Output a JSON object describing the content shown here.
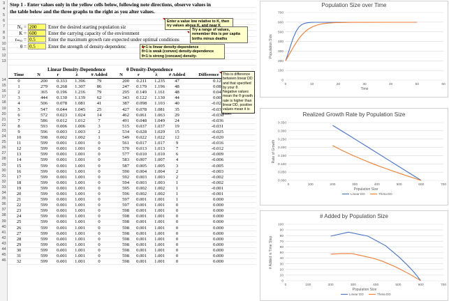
{
  "instructions": [
    "Step 1 - Enter values only in the yellow cells below, following note directions, observe values in",
    "the table below and the three graphs to the right as you alter values."
  ],
  "params": [
    {
      "label": "N₀ =",
      "value": "200",
      "desc": "Enter the desired starting population siz"
    },
    {
      "label": "K =",
      "value": "600",
      "desc": "Enter the carrying capacity of the environment"
    },
    {
      "label": "rₘₐₓ =",
      "value": "0.5",
      "desc": "Enter the maximum growth rate expected under optimal conditions"
    },
    {
      "label": "θ = ",
      "value": "0.5",
      "desc": "Enter the strength of density-dependenc"
    }
  ],
  "notes": {
    "k_note": "Enter a value low relative to K, then try values above K, and near K",
    "r_note": "Try a range of values, remember this is per capita births minus deaths",
    "theta_note": [
      "θ=1 is linear density-dependence",
      "θ>1 is weak (convex) density-dependence",
      "θ<1 is strong (concave) density-"
    ],
    "diff_note": "This is difference between linear DD and that specified by your θ. Negative values mean the θ growth rate is higher than linear DD, positive values mean it is lower."
  },
  "table": {
    "group_linear": "Linear Density-Dependence",
    "group_theta": "θ Density-Dependence",
    "headers": [
      "Time",
      "N",
      "r",
      "λ",
      "# Added",
      "N",
      "r",
      "λ",
      "# Added",
      "Difference"
    ],
    "rows": [
      [
        "0",
        "200",
        "0.333",
        "1.396",
        "79",
        "200",
        "0.211",
        "1.235",
        "47",
        "0.122"
      ],
      [
        "1",
        "279",
        "0.268",
        "1.307",
        "86",
        "247",
        "0.179",
        "1.196",
        "48",
        "0.088"
      ],
      [
        "2",
        "365",
        "0.196",
        "1.216",
        "79",
        "295",
        "0.149",
        "1.161",
        "48",
        "0.046"
      ],
      [
        "3",
        "444",
        "0.130",
        "1.139",
        "62",
        "343",
        "0.122",
        "1.130",
        "44",
        "0.008"
      ],
      [
        "4",
        "506",
        "0.078",
        "1.081",
        "41",
        "387",
        "0.098",
        "1.103",
        "40",
        "-0.020"
      ],
      [
        "5",
        "547",
        "0.044",
        "1.045",
        "25",
        "427",
        "0.078",
        "1.081",
        "35",
        "-0.034"
      ],
      [
        "6",
        "572",
        "0.023",
        "1.024",
        "14",
        "462",
        "0.061",
        "1.063",
        "29",
        "-0.038"
      ],
      [
        "7",
        "586",
        "0.012",
        "1.012",
        "7",
        "491",
        "0.048",
        "1.049",
        "24",
        "-0.036"
      ],
      [
        "8",
        "593",
        "0.006",
        "1.006",
        "3",
        "515",
        "0.037",
        "1.037",
        "19",
        "-0.031"
      ],
      [
        "9",
        "596",
        "0.003",
        "1.003",
        "2",
        "534",
        "0.028",
        "1.029",
        "15",
        "-0.025"
      ],
      [
        "10",
        "598",
        "0.002",
        "1.002",
        "1",
        "549",
        "0.022",
        "1.022",
        "12",
        "-0.020"
      ],
      [
        "11",
        "599",
        "0.001",
        "1.001",
        "0",
        "561",
        "0.017",
        "1.017",
        "9",
        "-0.016"
      ],
      [
        "12",
        "599",
        "0.001",
        "1.001",
        "0",
        "570",
        "0.013",
        "1.013",
        "7",
        "-0.012"
      ],
      [
        "13",
        "599",
        "0.001",
        "1.001",
        "0",
        "577",
        "0.010",
        "1.010",
        "6",
        "-0.009"
      ],
      [
        "14",
        "599",
        "0.001",
        "1.001",
        "0",
        "583",
        "0.007",
        "1.007",
        "4",
        "-0.006"
      ],
      [
        "15",
        "599",
        "0.001",
        "1.001",
        "0",
        "587",
        "0.005",
        "1.005",
        "3",
        "-0.005"
      ],
      [
        "16",
        "599",
        "0.001",
        "1.001",
        "0",
        "590",
        "0.004",
        "1.004",
        "2",
        "-0.003"
      ],
      [
        "17",
        "599",
        "0.001",
        "1.001",
        "0",
        "592",
        "0.003",
        "1.003",
        "2",
        "-0.002"
      ],
      [
        "18",
        "599",
        "0.001",
        "1.001",
        "0",
        "594",
        "0.003",
        "1.003",
        "1",
        "-0.002"
      ],
      [
        "19",
        "599",
        "0.001",
        "1.001",
        "0",
        "595",
        "0.002",
        "1.002",
        "1",
        "-0.001"
      ],
      [
        "20",
        "599",
        "0.001",
        "1.001",
        "0",
        "596",
        "0.002",
        "1.002",
        "1",
        "-0.001"
      ],
      [
        "21",
        "599",
        "0.001",
        "1.001",
        "0",
        "597",
        "0.001",
        "1.001",
        "1",
        "0.000"
      ],
      [
        "22",
        "599",
        "0.001",
        "1.001",
        "0",
        "597",
        "0.001",
        "1.001",
        "0",
        "0.000"
      ],
      [
        "23",
        "599",
        "0.001",
        "1.001",
        "0",
        "598",
        "0.001",
        "1.001",
        "0",
        "0.000"
      ],
      [
        "24",
        "599",
        "0.001",
        "1.001",
        "0",
        "598",
        "0.001",
        "1.001",
        "0",
        "0.000"
      ],
      [
        "25",
        "599",
        "0.001",
        "1.001",
        "0",
        "598",
        "0.001",
        "1.001",
        "0",
        "0.000"
      ],
      [
        "26",
        "599",
        "0.001",
        "1.001",
        "0",
        "598",
        "0.001",
        "1.001",
        "0",
        "0.000"
      ],
      [
        "27",
        "599",
        "0.001",
        "1.001",
        "0",
        "598",
        "0.001",
        "1.001",
        "0",
        "0.000"
      ],
      [
        "28",
        "599",
        "0.001",
        "1.001",
        "0",
        "598",
        "0.001",
        "1.001",
        "0",
        "0.000"
      ],
      [
        "29",
        "599",
        "0.001",
        "1.001",
        "0",
        "598",
        "0.001",
        "1.001",
        "0",
        "0.000"
      ],
      [
        "30",
        "599",
        "0.001",
        "1.001",
        "0",
        "598",
        "0.001",
        "1.001",
        "0",
        "0.000"
      ],
      [
        "31",
        "599",
        "0.001",
        "1.001",
        "0",
        "598",
        "0.001",
        "1.001",
        "0",
        "0.000"
      ],
      [
        "32",
        "599",
        "0.001",
        "1.001",
        "0",
        "598",
        "0.001",
        "1.001",
        "0",
        "0.000"
      ]
    ]
  },
  "row_numbers": [
    "3",
    "4",
    "5",
    "6",
    "7",
    "8",
    "9",
    "10",
    "11",
    "12",
    "13",
    "14",
    "15",
    "16",
    "17",
    "18",
    "19",
    "20",
    "21",
    "22",
    "23",
    "24",
    "25",
    "26",
    "27",
    "28",
    "29",
    "30",
    "31",
    "32",
    "33",
    "34",
    "35",
    "36",
    "37",
    "38",
    "39",
    "40",
    "41",
    "42",
    "43",
    "44",
    "45",
    "46"
  ],
  "colors": {
    "linear": "#4472c4",
    "theta": "#ed7d31",
    "yellow": "#ffff66"
  },
  "chart_data": [
    {
      "type": "line",
      "title": "Population Size over Time",
      "xlabel": "Time",
      "ylabel": "Population Size",
      "xlim": [
        0,
        60
      ],
      "ylim": [
        0,
        700
      ],
      "xticks": [
        "0",
        "10",
        "20",
        "30",
        "40",
        "50",
        "60"
      ],
      "yticks": [
        "0",
        "100",
        "200",
        "300",
        "400",
        "500",
        "600",
        "700"
      ],
      "legend": "none",
      "series": [
        {
          "values": [
            [
              0,
              200
            ],
            [
              1,
              279
            ],
            [
              2,
              365
            ],
            [
              3,
              444
            ],
            [
              4,
              506
            ],
            [
              5,
              547
            ],
            [
              6,
              572
            ],
            [
              7,
              586
            ],
            [
              8,
              593
            ],
            [
              9,
              596
            ],
            [
              10,
              598
            ],
            [
              11,
              599
            ],
            [
              15,
              599
            ],
            [
              20,
              599
            ],
            [
              30,
              599
            ],
            [
              40,
              599
            ],
            [
              50,
              599
            ]
          ]
        },
        {
          "values": [
            [
              0,
              200
            ],
            [
              1,
              247
            ],
            [
              2,
              295
            ],
            [
              3,
              343
            ],
            [
              4,
              387
            ],
            [
              5,
              427
            ],
            [
              6,
              462
            ],
            [
              7,
              491
            ],
            [
              8,
              515
            ],
            [
              9,
              534
            ],
            [
              10,
              549
            ],
            [
              11,
              561
            ],
            [
              12,
              570
            ],
            [
              13,
              577
            ],
            [
              14,
              583
            ],
            [
              15,
              587
            ],
            [
              16,
              590
            ],
            [
              17,
              592
            ],
            [
              18,
              594
            ],
            [
              19,
              595
            ],
            [
              20,
              596
            ],
            [
              22,
              597
            ],
            [
              25,
              598
            ],
            [
              30,
              598
            ],
            [
              40,
              599
            ],
            [
              50,
              599
            ]
          ]
        }
      ]
    },
    {
      "type": "line",
      "title": "Realized Growth Rate by Population Size",
      "xlabel": "Population Size",
      "ylabel": "Rate of Growth",
      "xlim": [
        0,
        700
      ],
      "ylim": [
        0,
        0.35
      ],
      "xticks": [
        "0",
        "100",
        "200",
        "300",
        "400",
        "500",
        "600",
        "700"
      ],
      "yticks": [
        "0.000",
        "0.050",
        "0.100",
        "0.150",
        "0.200",
        "0.250",
        "0.300",
        "0.350"
      ],
      "legend": "bottom",
      "series": [
        {
          "name": "Linear DD",
          "values": [
            [
              200,
              0.333
            ],
            [
              279,
              0.268
            ],
            [
              365,
              0.196
            ],
            [
              444,
              0.13
            ],
            [
              506,
              0.078
            ],
            [
              547,
              0.044
            ],
            [
              572,
              0.023
            ],
            [
              586,
              0.012
            ],
            [
              593,
              0.006
            ],
            [
              596,
              0.003
            ],
            [
              599,
              0.001
            ]
          ]
        },
        {
          "name": "Theta DD",
          "values": [
            [
              200,
              0.211
            ],
            [
              247,
              0.179
            ],
            [
              295,
              0.149
            ],
            [
              343,
              0.122
            ],
            [
              387,
              0.098
            ],
            [
              427,
              0.078
            ],
            [
              462,
              0.061
            ],
            [
              491,
              0.048
            ],
            [
              515,
              0.037
            ],
            [
              534,
              0.028
            ],
            [
              549,
              0.022
            ],
            [
              570,
              0.013
            ],
            [
              583,
              0.007
            ],
            [
              592,
              0.003
            ],
            [
              598,
              0.001
            ]
          ]
        }
      ]
    },
    {
      "type": "line",
      "title": "# Added by Population Size",
      "xlabel": "Population Size",
      "ylabel": "# Added in Time Step",
      "xlim": [
        0,
        700
      ],
      "ylim": [
        0,
        100
      ],
      "xticks": [
        "0",
        "100",
        "200",
        "300",
        "400",
        "500",
        "600",
        "700"
      ],
      "yticks": [
        "0",
        "10",
        "20",
        "30",
        "40",
        "50",
        "60",
        "70",
        "80",
        "90",
        "100"
      ],
      "legend": "bottom",
      "series": [
        {
          "name": "Linear DD",
          "values": [
            [
              200,
              79
            ],
            [
              279,
              86
            ],
            [
              365,
              79
            ],
            [
              444,
              62
            ],
            [
              506,
              41
            ],
            [
              547,
              25
            ],
            [
              572,
              14
            ],
            [
              586,
              7
            ],
            [
              593,
              3
            ],
            [
              596,
              2
            ],
            [
              599,
              0
            ]
          ]
        },
        {
          "name": "Theta DD",
          "values": [
            [
              200,
              47
            ],
            [
              247,
              48
            ],
            [
              295,
              48
            ],
            [
              343,
              44
            ],
            [
              387,
              40
            ],
            [
              427,
              35
            ],
            [
              462,
              29
            ],
            [
              491,
              24
            ],
            [
              515,
              19
            ],
            [
              534,
              15
            ],
            [
              549,
              12
            ],
            [
              570,
              7
            ],
            [
              583,
              4
            ],
            [
              592,
              2
            ],
            [
              598,
              0
            ]
          ]
        }
      ]
    }
  ]
}
